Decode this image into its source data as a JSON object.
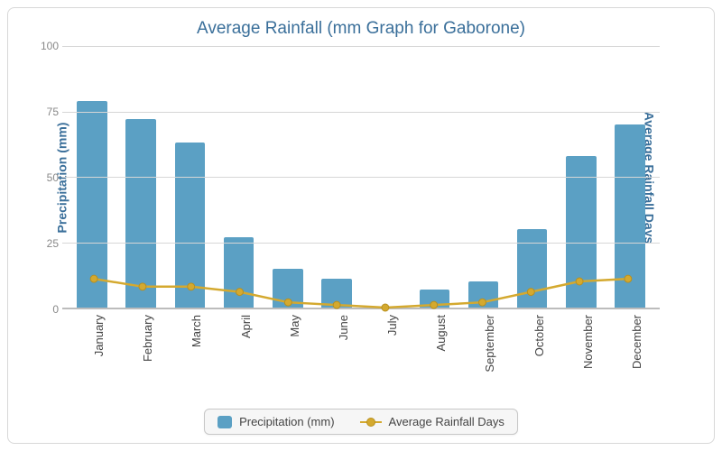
{
  "chart": {
    "type": "bar+line",
    "title": "Average Rainfall (mm Graph for Gaborone)",
    "title_color": "#3a6f9a",
    "title_fontsize": 19,
    "background_color": "#ffffff",
    "border_color": "#d8d8d8",
    "grid_color": "#d6d6d6",
    "baseline_color": "#bcbcbc",
    "categories": [
      "January",
      "February",
      "March",
      "April",
      "May",
      "June",
      "July",
      "August",
      "September",
      "October",
      "November",
      "December"
    ],
    "xlabel_fontsize": 13,
    "xlabel_color": "#444444",
    "xlabel_rotation": -90,
    "y_left": {
      "label": "Precipitation (mm)",
      "label_color": "#3a6f9a",
      "label_fontsize": 14,
      "min": 0,
      "max": 100,
      "tick_step": 25,
      "tick_color": "#888888",
      "tick_fontsize": 12
    },
    "y_right": {
      "label": "Average Rainfall Days",
      "label_color": "#3a6f9a",
      "label_fontsize": 14,
      "min": 0,
      "max": 100,
      "tick_step": 25
    },
    "bars": {
      "label": "Precipitation (mm)",
      "values": [
        79,
        72,
        63,
        27,
        15,
        11,
        0,
        7,
        10,
        30,
        58,
        70
      ],
      "color": "#5ba0c4",
      "width_ratio": 0.62,
      "border_radius": 2
    },
    "line": {
      "label": "Average Rainfall Days",
      "values": [
        11,
        8,
        8,
        6,
        2,
        1,
        0,
        1,
        2,
        6,
        10,
        11
      ],
      "color": "#d4a92f",
      "marker_fill": "#d4a92f",
      "marker_stroke": "#b8901f",
      "line_width": 2.5,
      "marker_radius": 4
    },
    "legend": {
      "background": "#f6f6f6",
      "border_color": "#c8c8c8",
      "text_color": "#444444",
      "fontsize": 13
    }
  }
}
